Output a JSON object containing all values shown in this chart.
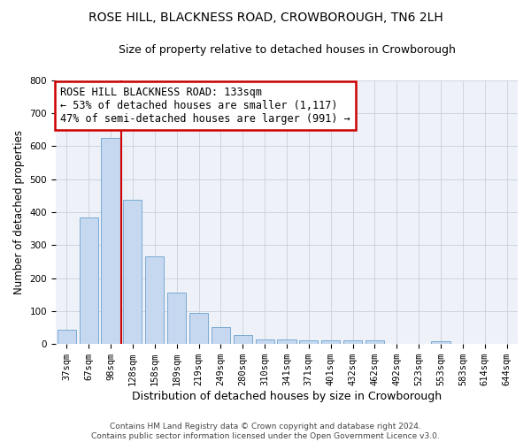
{
  "title": "ROSE HILL, BLACKNESS ROAD, CROWBOROUGH, TN6 2LH",
  "subtitle": "Size of property relative to detached houses in Crowborough",
  "xlabel": "Distribution of detached houses by size in Crowborough",
  "ylabel": "Number of detached properties",
  "categories": [
    "37sqm",
    "67sqm",
    "98sqm",
    "128sqm",
    "158sqm",
    "189sqm",
    "219sqm",
    "249sqm",
    "280sqm",
    "310sqm",
    "341sqm",
    "371sqm",
    "401sqm",
    "432sqm",
    "462sqm",
    "492sqm",
    "523sqm",
    "553sqm",
    "583sqm",
    "614sqm",
    "644sqm"
  ],
  "bar_heights": [
    43,
    383,
    625,
    438,
    267,
    155,
    95,
    52,
    28,
    15,
    15,
    11,
    11,
    11,
    10,
    0,
    0,
    8,
    0,
    0,
    0
  ],
  "bar_color": "#c5d8f0",
  "bar_edgecolor": "#7aaad4",
  "grid_color": "#c8d0dc",
  "bg_color": "#eef2f8",
  "annotation_text": "ROSE HILL BLACKNESS ROAD: 133sqm\n← 53% of detached houses are smaller (1,117)\n47% of semi-detached houses are larger (991) →",
  "annotation_box_color": "#ffffff",
  "annotation_box_edgecolor": "#cc0000",
  "footer": "Contains HM Land Registry data © Crown copyright and database right 2024.\nContains public sector information licensed under the Open Government Licence v3.0.",
  "ylim": [
    0,
    800
  ],
  "yticks": [
    0,
    100,
    200,
    300,
    400,
    500,
    600,
    700,
    800
  ],
  "title_fontsize": 10,
  "subtitle_fontsize": 9,
  "xlabel_fontsize": 9,
  "ylabel_fontsize": 8.5,
  "tick_fontsize": 7.5,
  "annotation_fontsize": 8.5,
  "footer_fontsize": 6.5
}
